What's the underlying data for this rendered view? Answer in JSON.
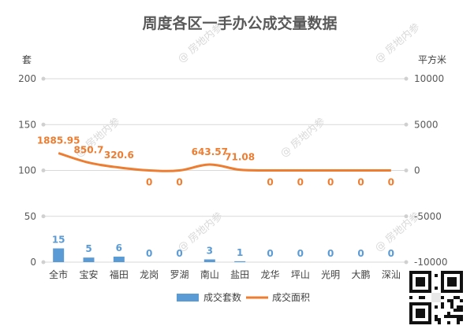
{
  "chart_data": {
    "type": "bar+line",
    "title": "周度各区一手办公成交量数据",
    "categories": [
      "全市",
      "宝安",
      "福田",
      "龙岗",
      "罗湖",
      "南山",
      "盐田",
      "龙华",
      "坪山",
      "光明",
      "大鹏",
      "深汕"
    ],
    "series": [
      {
        "name": "成交套数",
        "type": "bar",
        "axis": "left",
        "color": "#5b9bd5",
        "values": [
          15,
          5,
          6,
          0,
          0,
          3,
          1,
          0,
          0,
          0,
          0,
          0
        ],
        "labels": [
          "15",
          "5",
          "6",
          "0",
          "0",
          "3",
          "1",
          "0",
          "0",
          "0",
          "0",
          "0"
        ]
      },
      {
        "name": "成交面积",
        "type": "line",
        "axis": "right",
        "color": "#ed7d31",
        "values": [
          1885.95,
          850.7,
          320.6,
          0,
          0,
          643.57,
          71.08,
          0,
          0,
          0,
          0,
          0
        ],
        "labels": [
          "1885.95",
          "850.7",
          "320.6",
          "0",
          "0",
          "643.57",
          "71.08",
          "0",
          "0",
          "0",
          "0",
          "0"
        ]
      }
    ],
    "y_left": {
      "label": "套",
      "ylim": [
        0,
        200
      ],
      "ticks": [
        "0",
        "50",
        "100",
        "150",
        "200"
      ],
      "tick_values": [
        0,
        50,
        100,
        150,
        200
      ]
    },
    "y_right": {
      "label": "平方米",
      "ylim": [
        -10000,
        10000
      ],
      "ticks": [
        "-10000",
        "-5000",
        "0",
        "5000",
        "10000"
      ],
      "tick_values": [
        -10000,
        -5000,
        0,
        5000,
        10000
      ]
    },
    "grid": true,
    "legend_position": "bottom"
  },
  "watermark": "@ 房地内参"
}
